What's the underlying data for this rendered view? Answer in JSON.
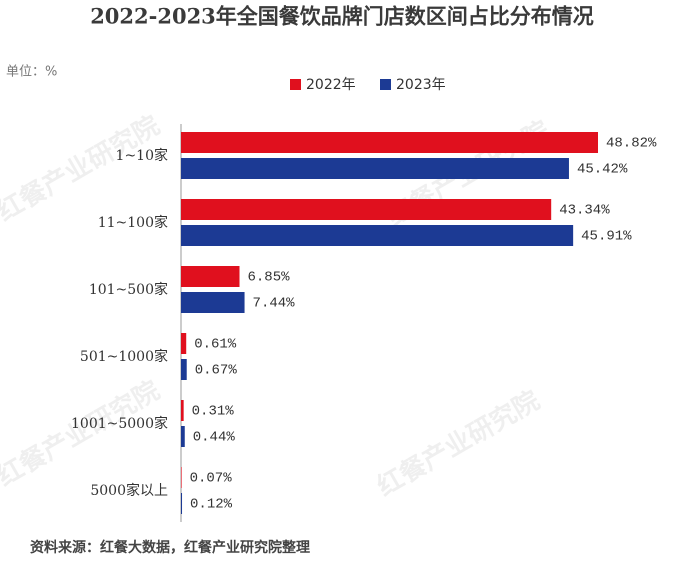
{
  "chart_data": {
    "type": "bar",
    "orientation": "horizontal",
    "title": "2022-2023年全国餐饮品牌门店数区间占比分布情况",
    "unit": "单位：%",
    "source": "资料来源：红餐大数据，红餐产业研究院整理",
    "watermark": "红餐产业研究院",
    "categories": [
      "1~10家",
      "11~100家",
      "101~500家",
      "501~1000家",
      "1001~5000家",
      "5000家以上"
    ],
    "series": [
      {
        "name": "2022年",
        "color": "#e0101e",
        "values": [
          48.82,
          43.34,
          6.85,
          0.61,
          0.31,
          0.07
        ],
        "value_labels": [
          "48.82%",
          "43.34%",
          "6.85%",
          "0.61%",
          "0.31%",
          "0.07%"
        ]
      },
      {
        "name": "2023年",
        "color": "#1c3a94",
        "values": [
          45.42,
          45.91,
          7.44,
          0.67,
          0.44,
          0.12
        ],
        "value_labels": [
          "45.42%",
          "45.91%",
          "7.44%",
          "0.67%",
          "0.44%",
          "0.12%"
        ]
      }
    ]
  }
}
